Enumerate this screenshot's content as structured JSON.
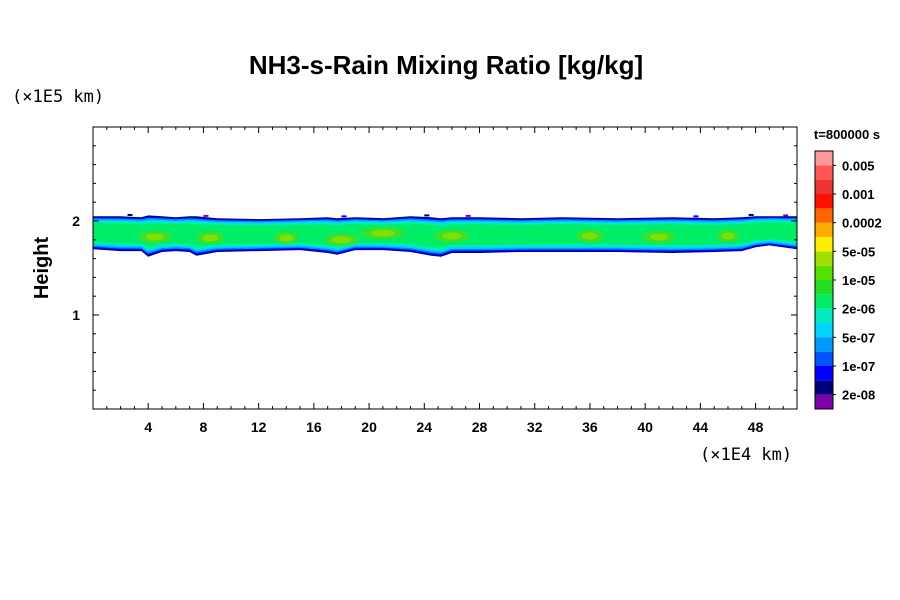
{
  "chart_data": {
    "type": "heatmap",
    "title": "NH3-s-Rain Mixing Ratio [kg/kg]",
    "xlabel": "",
    "ylabel": "Height",
    "x_unit_label": "(×1E4 km)",
    "y_unit_label": "(×1E5 km)",
    "time_label": "t=800000 s",
    "xlim": [
      0,
      51
    ],
    "ylim": [
      0,
      3
    ],
    "x_ticks": [
      4,
      8,
      12,
      16,
      20,
      24,
      28,
      32,
      36,
      40,
      44,
      48
    ],
    "x_tick_labels": [
      "4",
      "8",
      "12",
      "16",
      "20",
      "24",
      "28",
      "32",
      "36",
      "40",
      "44",
      "48"
    ],
    "y_ticks": [
      1,
      2
    ],
    "y_tick_labels": [
      "1",
      "2"
    ],
    "x_minor_step": 1,
    "y_minor_step": 0.2,
    "colorbar": {
      "colors": [
        "#7f00a8",
        "#00007f",
        "#0000ff",
        "#0055ff",
        "#0099ff",
        "#00d5ff",
        "#00ecc0",
        "#00ee66",
        "#22dd22",
        "#55e000",
        "#a0e000",
        "#ffee00",
        "#ffaa00",
        "#ff6600",
        "#ff1100",
        "#ee3333",
        "#ff5555",
        "#ff9999"
      ],
      "labels": [
        "2e-08",
        "1e-07",
        "5e-07",
        "2e-06",
        "1e-05",
        "5e-05",
        "0.0002",
        "0.001",
        "0.005"
      ]
    },
    "band": {
      "x": [
        0,
        2,
        3.5,
        4,
        5,
        6,
        7,
        7.5,
        9,
        12,
        15,
        17,
        17.7,
        19,
        21,
        23,
        24.5,
        25.2,
        26,
        28,
        31,
        34,
        38,
        42,
        45,
        47,
        48,
        49,
        51
      ],
      "top": [
        2.05,
        2.05,
        2.04,
        2.06,
        2.05,
        2.04,
        2.05,
        2.05,
        2.03,
        2.02,
        2.03,
        2.04,
        2.03,
        2.04,
        2.03,
        2.05,
        2.04,
        2.03,
        2.04,
        2.04,
        2.03,
        2.04,
        2.03,
        2.04,
        2.03,
        2.04,
        2.05,
        2.05,
        2.05
      ],
      "bottom": [
        1.7,
        1.68,
        1.68,
        1.62,
        1.67,
        1.68,
        1.67,
        1.63,
        1.67,
        1.68,
        1.69,
        1.66,
        1.64,
        1.69,
        1.69,
        1.67,
        1.63,
        1.62,
        1.66,
        1.66,
        1.67,
        1.67,
        1.67,
        1.66,
        1.67,
        1.68,
        1.72,
        1.74,
        1.7
      ]
    }
  }
}
